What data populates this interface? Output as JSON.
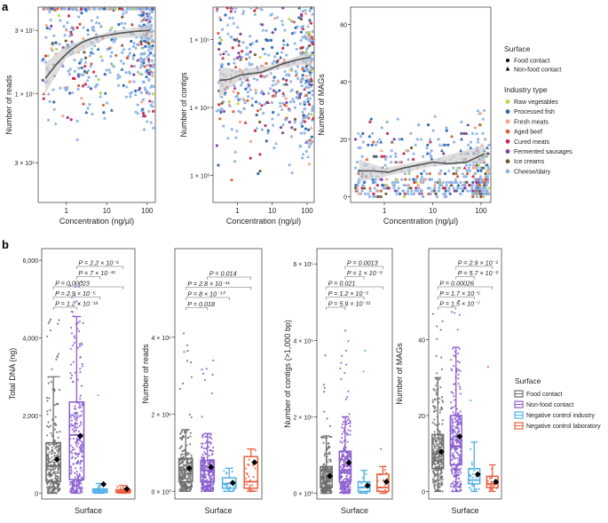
{
  "panel_labels": {
    "a": "a",
    "b": "b"
  },
  "colors": {
    "raw_vegetables": "#b6d44a",
    "processed_fish": "#2b66b0",
    "fresh_meats": "#f4a582",
    "aged_beef": "#d6603a",
    "cured_meats": "#c62a4a",
    "fermented_sausages": "#7b3fa0",
    "ice_creams": "#6b5a2e",
    "cheese_dairy": "#8fb3e3",
    "food_contact": "#6e6e6e",
    "non_food_contact": "#8a5ecf",
    "neg_industry": "#4fb0e8",
    "neg_laboratory": "#e8603c",
    "smooth_line": "#555555",
    "smooth_band": "#cfcfcf"
  },
  "legend_a": {
    "surface_title": "Surface",
    "surface_items": [
      "Food contact",
      "Non-food contact"
    ],
    "industry_title": "Industry type",
    "industry_items": [
      "Raw vegetables",
      "Processed fish",
      "Fresh meats",
      "Aged beef",
      "Cured meats",
      "Fermented sausages",
      "Ice creams",
      "Cheese/dairy"
    ],
    "industry_keys": [
      "raw_vegetables",
      "processed_fish",
      "fresh_meats",
      "aged_beef",
      "cured_meats",
      "fermented_sausages",
      "ice_creams",
      "cheese_dairy"
    ]
  },
  "legend_b": {
    "title": "Surface",
    "items": [
      "Food contact",
      "Non-food contact",
      "Negative control industry",
      "Negative control laboratory"
    ],
    "keys": [
      "food_contact",
      "non_food_contact",
      "neg_industry",
      "neg_laboratory"
    ]
  },
  "chart_data": [
    {
      "type": "scatter",
      "id": "a1",
      "xlabel": "Concentration (ng/µl)",
      "ylabel": "Number of reads",
      "x_scale": "log",
      "xlim": [
        0.2,
        160
      ],
      "x_ticks": [
        {
          "v": 1,
          "t": "1"
        },
        {
          "v": 10,
          "t": "10"
        },
        {
          "v": 100,
          "t": "100"
        }
      ],
      "y_scale": "log",
      "ylim": [
        1500000,
        45000000
      ],
      "y_ticks": [
        {
          "v": 3000000,
          "t": "3 × 10⁶"
        },
        {
          "v": 10000000,
          "t": "1 × 10⁷"
        },
        {
          "v": 30000000,
          "t": "3 × 10⁷"
        }
      ],
      "smooth": [
        [
          0.3,
          13000000
        ],
        [
          0.6,
          17000000
        ],
        [
          1.2,
          21000000
        ],
        [
          2.5,
          24500000
        ],
        [
          5,
          26500000
        ],
        [
          10,
          27500000
        ],
        [
          20,
          28500000
        ],
        [
          50,
          29500000
        ],
        [
          120,
          30000000
        ]
      ],
      "smooth_band": [
        [
          0.3,
          10000000,
          17000000
        ],
        [
          1,
          18500000,
          23000000
        ],
        [
          10,
          26000000,
          29000000
        ],
        [
          120,
          27000000,
          33000000
        ]
      ],
      "n_points": 520,
      "spread": 0.28,
      "center_log": 7.35
    },
    {
      "type": "scatter",
      "id": "a2",
      "xlabel": "Concentration (ng/µl)",
      "ylabel": "Number of contigs",
      "x_scale": "log",
      "xlim": [
        0.2,
        160
      ],
      "x_ticks": [
        {
          "v": 1,
          "t": "1"
        },
        {
          "v": 10,
          "t": "10"
        },
        {
          "v": 100,
          "t": "100"
        }
      ],
      "y_scale": "log",
      "ylim": [
        400,
        300000
      ],
      "y_ticks": [
        {
          "v": 1000,
          "t": "1 × 10³"
        },
        {
          "v": 10000,
          "t": "1 × 10⁴"
        },
        {
          "v": 100000,
          "t": "1 × 10⁵"
        }
      ],
      "smooth": [
        [
          0.3,
          25000
        ],
        [
          0.6,
          26000
        ],
        [
          1.2,
          30000
        ],
        [
          2.5,
          31500
        ],
        [
          5,
          33000
        ],
        [
          10,
          38000
        ],
        [
          20,
          44000
        ],
        [
          50,
          50000
        ],
        [
          120,
          55000
        ]
      ],
      "smooth_band": [
        [
          0.3,
          14000,
          40000
        ],
        [
          1,
          24000,
          36000
        ],
        [
          10,
          35000,
          42000
        ],
        [
          120,
          45000,
          66000
        ]
      ],
      "n_points": 520,
      "spread": 0.55,
      "center_log": 4.45
    },
    {
      "type": "scatter",
      "id": "a3",
      "xlabel": "Concentration (ng/µl)",
      "ylabel": "Number of MAGs",
      "x_scale": "log",
      "xlim": [
        0.2,
        160
      ],
      "x_ticks": [
        {
          "v": 1,
          "t": "1"
        },
        {
          "v": 10,
          "t": "10"
        },
        {
          "v": 100,
          "t": "100"
        }
      ],
      "y_scale": "linear",
      "ylim": [
        -2,
        66
      ],
      "y_ticks": [
        {
          "v": 0,
          "t": "0"
        },
        {
          "v": 20,
          "t": "20"
        },
        {
          "v": 40,
          "t": "40"
        },
        {
          "v": 60,
          "t": "60"
        }
      ],
      "smooth": [
        [
          0.3,
          9
        ],
        [
          0.6,
          9
        ],
        [
          1.2,
          8.5
        ],
        [
          2.5,
          10
        ],
        [
          5,
          11
        ],
        [
          10,
          12
        ],
        [
          20,
          11.5
        ],
        [
          50,
          12
        ],
        [
          120,
          15
        ]
      ],
      "smooth_band": [
        [
          0.3,
          5,
          13
        ],
        [
          1,
          7,
          10
        ],
        [
          10,
          10.5,
          13
        ],
        [
          120,
          12,
          18
        ]
      ],
      "n_points": 520,
      "spread": 9,
      "center_lin": 11
    },
    {
      "type": "box",
      "id": "b1",
      "xlabel": "Surface",
      "ylabel": "Total DNA (ng)",
      "ylim": [
        -150,
        6300
      ],
      "y_ticks": [
        {
          "v": 0,
          "t": "0"
        },
        {
          "v": 2000,
          "t": "2,000"
        },
        {
          "v": 4000,
          "t": "4,000"
        },
        {
          "v": 6000,
          "t": "6,000"
        }
      ],
      "boxes": [
        {
          "key": "food_contact",
          "q1": 300,
          "median": 700,
          "q3": 1300,
          "lo": 0,
          "hi": 3000,
          "mean": 870
        },
        {
          "key": "non_food_contact",
          "q1": 350,
          "median": 1500,
          "q3": 2350,
          "lo": 0,
          "hi": 4550,
          "mean": 1470
        },
        {
          "key": "neg_industry",
          "q1": 20,
          "median": 60,
          "q3": 110,
          "lo": 0,
          "hi": 250,
          "mean": 230
        },
        {
          "key": "neg_laboratory",
          "q1": 20,
          "median": 40,
          "q3": 90,
          "lo": 0,
          "hi": 200,
          "mean": 110
        }
      ],
      "comparisons": [
        {
          "a": 0,
          "b": 1,
          "t": "P = 1.2 × 10⁻¹⁸"
        },
        {
          "a": 0,
          "b": 2,
          "t": "P = 2.9 × 10⁻⁵"
        },
        {
          "a": 0,
          "b": 3,
          "t": "P = 0.00023"
        },
        {
          "a": 1,
          "b": 2,
          "t": "P = 7 × 10⁻¹¹"
        },
        {
          "a": 1,
          "b": 3,
          "t": "P = 2.2 × 10⁻⁶"
        }
      ]
    },
    {
      "type": "box",
      "id": "b2",
      "xlabel": "Surface",
      "ylabel": "Number of reads",
      "ylim": [
        -200000,
        6300000
      ],
      "y_ticks": [
        {
          "v": 0,
          "t": "0 × 10⁰"
        },
        {
          "v": 2000000,
          "t": "2 × 10⁶"
        },
        {
          "v": 4000000,
          "t": "4 × 10⁶"
        }
      ],
      "boxes": [
        {
          "key": "food_contact",
          "q1": 250000,
          "median": 550000,
          "q3": 850000,
          "lo": 0,
          "hi": 1600000,
          "mean": 600000
        },
        {
          "key": "non_food_contact",
          "q1": 250000,
          "median": 550000,
          "q3": 800000,
          "lo": 0,
          "hi": 1500000,
          "mean": 630000
        },
        {
          "key": "neg_industry",
          "q1": 80000,
          "median": 200000,
          "q3": 350000,
          "lo": 0,
          "hi": 600000,
          "mean": 220000
        },
        {
          "key": "neg_laboratory",
          "q1": 80000,
          "median": 250000,
          "q3": 900000,
          "lo": 0,
          "hi": 1100000,
          "mean": 750000
        }
      ],
      "comparisons": [
        {
          "a": 0,
          "b": 1,
          "t": "P = 0.018"
        },
        {
          "a": 0,
          "b": 2,
          "t": "P = 8 × 10⁻¹⁰"
        },
        {
          "a": 0,
          "b": 3,
          "t": "P = 2.8 × 10⁻¹¹"
        },
        {
          "a": 1,
          "b": 3,
          "t": "P = 0.014"
        }
      ]
    },
    {
      "type": "box",
      "id": "b3",
      "xlabel": "Surface",
      "ylabel": "Number of contigs (>1,000 bp)",
      "ylim": [
        -15000,
        640000
      ],
      "y_ticks": [
        {
          "v": 0,
          "t": "0 × 10⁰"
        },
        {
          "v": 200000,
          "t": "2 × 10⁵"
        },
        {
          "v": 400000,
          "t": "4 × 10⁵"
        },
        {
          "v": 600000,
          "t": "6 × 10⁵"
        }
      ],
      "boxes": [
        {
          "key": "food_contact",
          "q1": 15000,
          "median": 40000,
          "q3": 70000,
          "lo": 0,
          "hi": 150000,
          "mean": 45000
        },
        {
          "key": "non_food_contact",
          "q1": 30000,
          "median": 60000,
          "q3": 110000,
          "lo": 0,
          "hi": 200000,
          "mean": 80000
        },
        {
          "key": "neg_industry",
          "q1": 5000,
          "median": 15000,
          "q3": 30000,
          "lo": 0,
          "hi": 60000,
          "mean": 20000
        },
        {
          "key": "neg_laboratory",
          "q1": 5000,
          "median": 15000,
          "q3": 50000,
          "lo": 0,
          "hi": 70000,
          "mean": 30000
        }
      ],
      "comparisons": [
        {
          "a": 0,
          "b": 1,
          "t": "P = 5.9 × 10⁻²¹"
        },
        {
          "a": 0,
          "b": 2,
          "t": "P = 1.2 × 10⁻⁵"
        },
        {
          "a": 0,
          "b": 3,
          "t": "P = 0.021"
        },
        {
          "a": 1,
          "b": 2,
          "t": "P = 1 × 10⁻⁹"
        },
        {
          "a": 1,
          "b": 3,
          "t": "P = 0.0013"
        }
      ]
    },
    {
      "type": "box",
      "id": "b4",
      "xlabel": "Surface",
      "ylabel": "Number of MAGs",
      "ylim": [
        -2,
        64
      ],
      "y_ticks": [
        {
          "v": 0,
          "t": "0"
        },
        {
          "v": 20,
          "t": "20"
        },
        {
          "v": 40,
          "t": "40"
        }
      ],
      "boxes": [
        {
          "key": "food_contact",
          "q1": 6,
          "median": 10,
          "q3": 15,
          "lo": 0,
          "hi": 30,
          "mean": 10.5
        },
        {
          "key": "non_food_contact",
          "q1": 7,
          "median": 12,
          "q3": 20,
          "lo": 0,
          "hi": 38,
          "mean": 14.5
        },
        {
          "key": "neg_industry",
          "q1": 2,
          "median": 3,
          "q3": 6,
          "lo": 0,
          "hi": 13,
          "mean": 4.5
        },
        {
          "key": "neg_laboratory",
          "q1": 1,
          "median": 2,
          "q3": 4,
          "lo": 0,
          "hi": 7,
          "mean": 2.5
        }
      ],
      "comparisons": [
        {
          "a": 0,
          "b": 1,
          "t": "P = 1.5 × 10⁻⁷"
        },
        {
          "a": 0,
          "b": 2,
          "t": "P = 1.7 × 10⁻⁵"
        },
        {
          "a": 0,
          "b": 3,
          "t": "P = 0.00026"
        },
        {
          "a": 1,
          "b": 2,
          "t": "P = 5.7 × 10⁻⁸"
        },
        {
          "a": 1,
          "b": 3,
          "t": "P = 2.9 × 10⁻⁵"
        }
      ]
    }
  ]
}
